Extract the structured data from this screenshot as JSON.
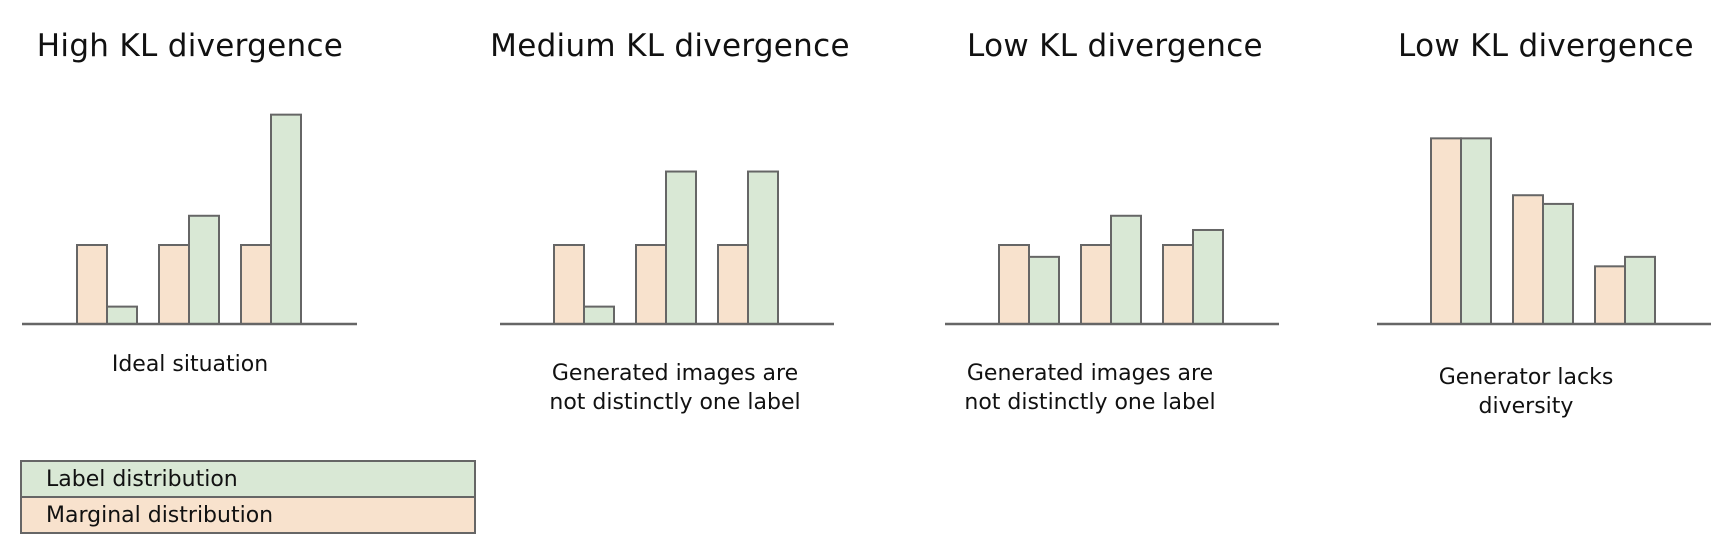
{
  "colors": {
    "label": "#d9e8d5",
    "marginal": "#f8e2cd",
    "stroke": "#666666"
  },
  "panels": [
    {
      "title": "High KL divergence",
      "caption": "Ideal situation",
      "groups": [
        {
          "marginal": 1,
          "label": 0.22
        },
        {
          "marginal": 1,
          "label": 1.37
        },
        {
          "marginal": 1,
          "label": 2.65
        }
      ]
    },
    {
      "title": "Medium KL divergence",
      "caption": "Generated images are not distinctly one label",
      "groups": [
        {
          "marginal": 1,
          "label": 0.22
        },
        {
          "marginal": 1,
          "label": 1.93
        },
        {
          "marginal": 1,
          "label": 1.93
        }
      ]
    },
    {
      "title": "Low KL divergence",
      "caption": "Generated images are not distinctly one label",
      "groups": [
        {
          "marginal": 1,
          "label": 0.85
        },
        {
          "marginal": 1,
          "label": 1.37
        },
        {
          "marginal": 1,
          "label": 1.19
        }
      ]
    },
    {
      "title": "Low KL divergence",
      "caption": "Generator lacks diversity",
      "groups": [
        {
          "marginal": 2.35,
          "label": 2.35
        },
        {
          "marginal": 1.63,
          "label": 1.52
        },
        {
          "marginal": 0.73,
          "label": 0.85
        }
      ]
    }
  ],
  "legend": {
    "label_distribution": "Label distribution",
    "marginal_distribution": "Marginal distribution"
  }
}
